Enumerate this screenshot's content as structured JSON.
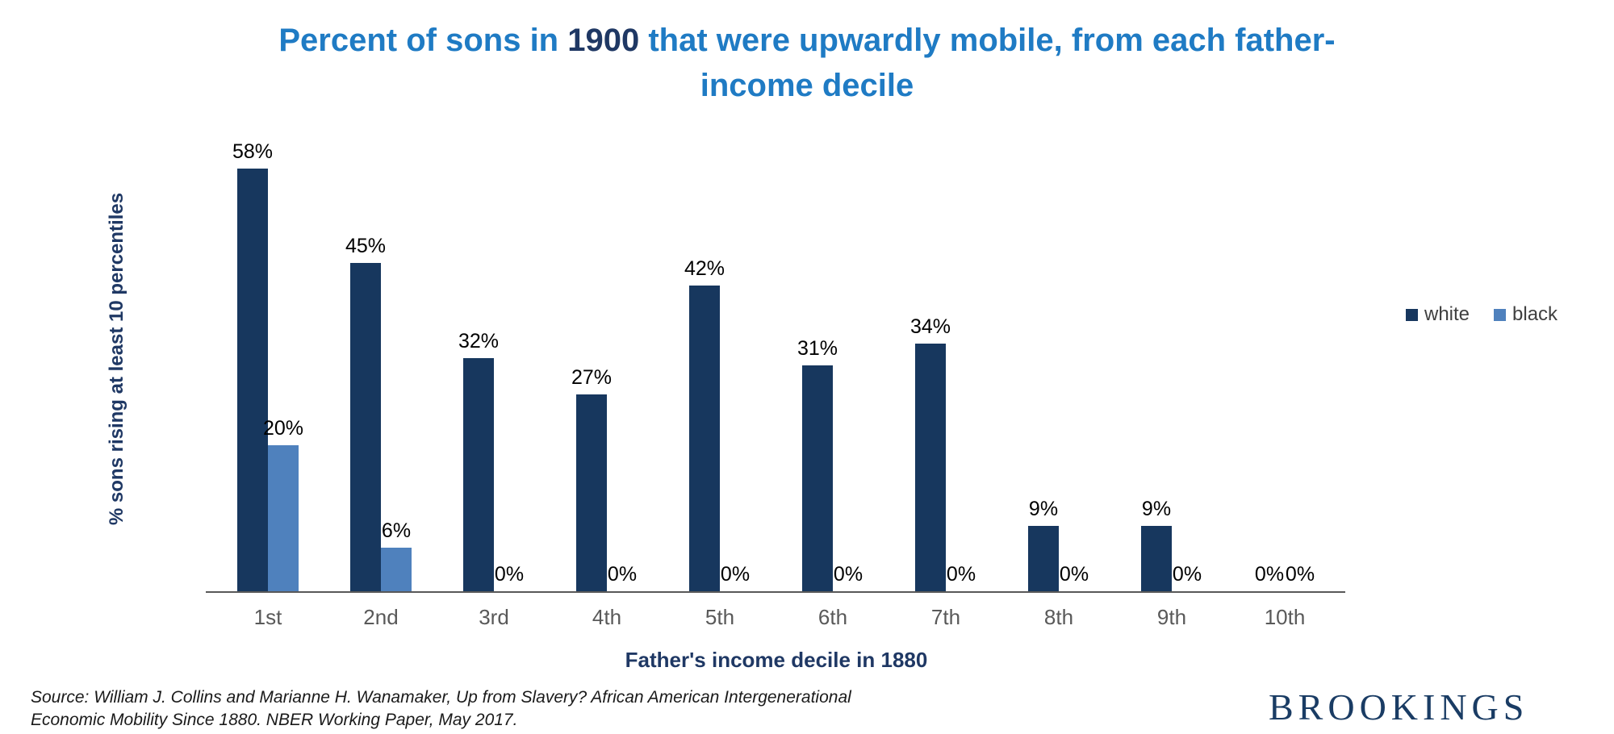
{
  "title": {
    "prefix": "Percent of sons in ",
    "highlight": "1900",
    "suffix": " that were upwardly mobile, from each father-income decile"
  },
  "chart_data": {
    "type": "bar",
    "categories": [
      "1st",
      "2nd",
      "3rd",
      "4th",
      "5th",
      "6th",
      "7th",
      "8th",
      "9th",
      "10th"
    ],
    "series": [
      {
        "name": "white",
        "color": "#17375E",
        "values": [
          58,
          45,
          32,
          27,
          42,
          31,
          34,
          9,
          9,
          0
        ]
      },
      {
        "name": "black",
        "color": "#4F81BD",
        "values": [
          20,
          6,
          0,
          0,
          0,
          0,
          0,
          0,
          0,
          0
        ]
      }
    ],
    "value_suffix": "%",
    "ylabel": "% sons rising at least 10 percentiles",
    "xlabel": "Father's income decile in 1880",
    "ylim": [
      0,
      60
    ],
    "grid": false,
    "legend_position": "right"
  },
  "source": {
    "line1": "Source: William J. Collins and Marianne H. Wanamaker, Up from Slavery? African American Intergenerational",
    "line2": "Economic Mobility Since 1880. NBER Working Paper, May 2017."
  },
  "branding": {
    "logo_text": "BROOKINGS"
  },
  "colors": {
    "title_blue": "#1F7BC4",
    "dark_navy": "#1F3864",
    "bar_white_series": "#17375E",
    "bar_black_series": "#4F81BD",
    "axis_gray": "#595959"
  }
}
